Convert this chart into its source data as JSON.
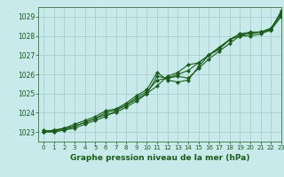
{
  "title": "Graphe pression niveau de la mer (hPa)",
  "bg_color": "#c8eaea",
  "grid_color": "#a8cece",
  "line_color": "#1a5c1a",
  "marker_color": "#1a5c1a",
  "xlim": [
    -0.5,
    23
  ],
  "ylim": [
    1022.5,
    1029.5
  ],
  "yticks": [
    1023,
    1024,
    1025,
    1026,
    1027,
    1028,
    1029
  ],
  "xticks": [
    0,
    1,
    2,
    3,
    4,
    5,
    6,
    7,
    8,
    9,
    10,
    11,
    12,
    13,
    14,
    15,
    16,
    17,
    18,
    19,
    20,
    21,
    22,
    23
  ],
  "series": [
    [
      1023.0,
      1023.1,
      1023.1,
      1023.3,
      1023.5,
      1023.7,
      1023.9,
      1024.0,
      1024.3,
      1024.6,
      1025.0,
      1025.9,
      1025.8,
      1025.9,
      1025.8,
      1026.3,
      1026.8,
      1027.2,
      1027.6,
      1028.0,
      1028.0,
      1028.1,
      1028.3,
      1029.0
    ],
    [
      1023.0,
      1023.1,
      1023.2,
      1023.4,
      1023.6,
      1023.8,
      1024.1,
      1024.2,
      1024.5,
      1024.9,
      1025.2,
      1026.1,
      1025.7,
      1025.6,
      1025.7,
      1026.4,
      1027.0,
      1027.4,
      1027.8,
      1028.1,
      1028.1,
      1028.2,
      1028.4,
      1029.2
    ],
    [
      1023.0,
      1023.0,
      1023.1,
      1023.2,
      1023.4,
      1023.6,
      1023.8,
      1024.1,
      1024.4,
      1024.7,
      1025.0,
      1025.4,
      1025.9,
      1026.1,
      1026.5,
      1026.6,
      1027.0,
      1027.4,
      1027.8,
      1028.1,
      1028.2,
      1028.2,
      1028.3,
      1029.3
    ],
    [
      1023.1,
      1023.0,
      1023.2,
      1023.3,
      1023.5,
      1023.7,
      1024.0,
      1024.15,
      1024.4,
      1024.8,
      1025.1,
      1025.7,
      1025.8,
      1026.0,
      1026.2,
      1026.6,
      1027.0,
      1027.3,
      1027.8,
      1028.0,
      1028.15,
      1028.2,
      1028.35,
      1029.1
    ]
  ],
  "ytick_fontsize": 5.5,
  "xtick_fontsize": 5.0,
  "xlabel_fontsize": 6.5
}
